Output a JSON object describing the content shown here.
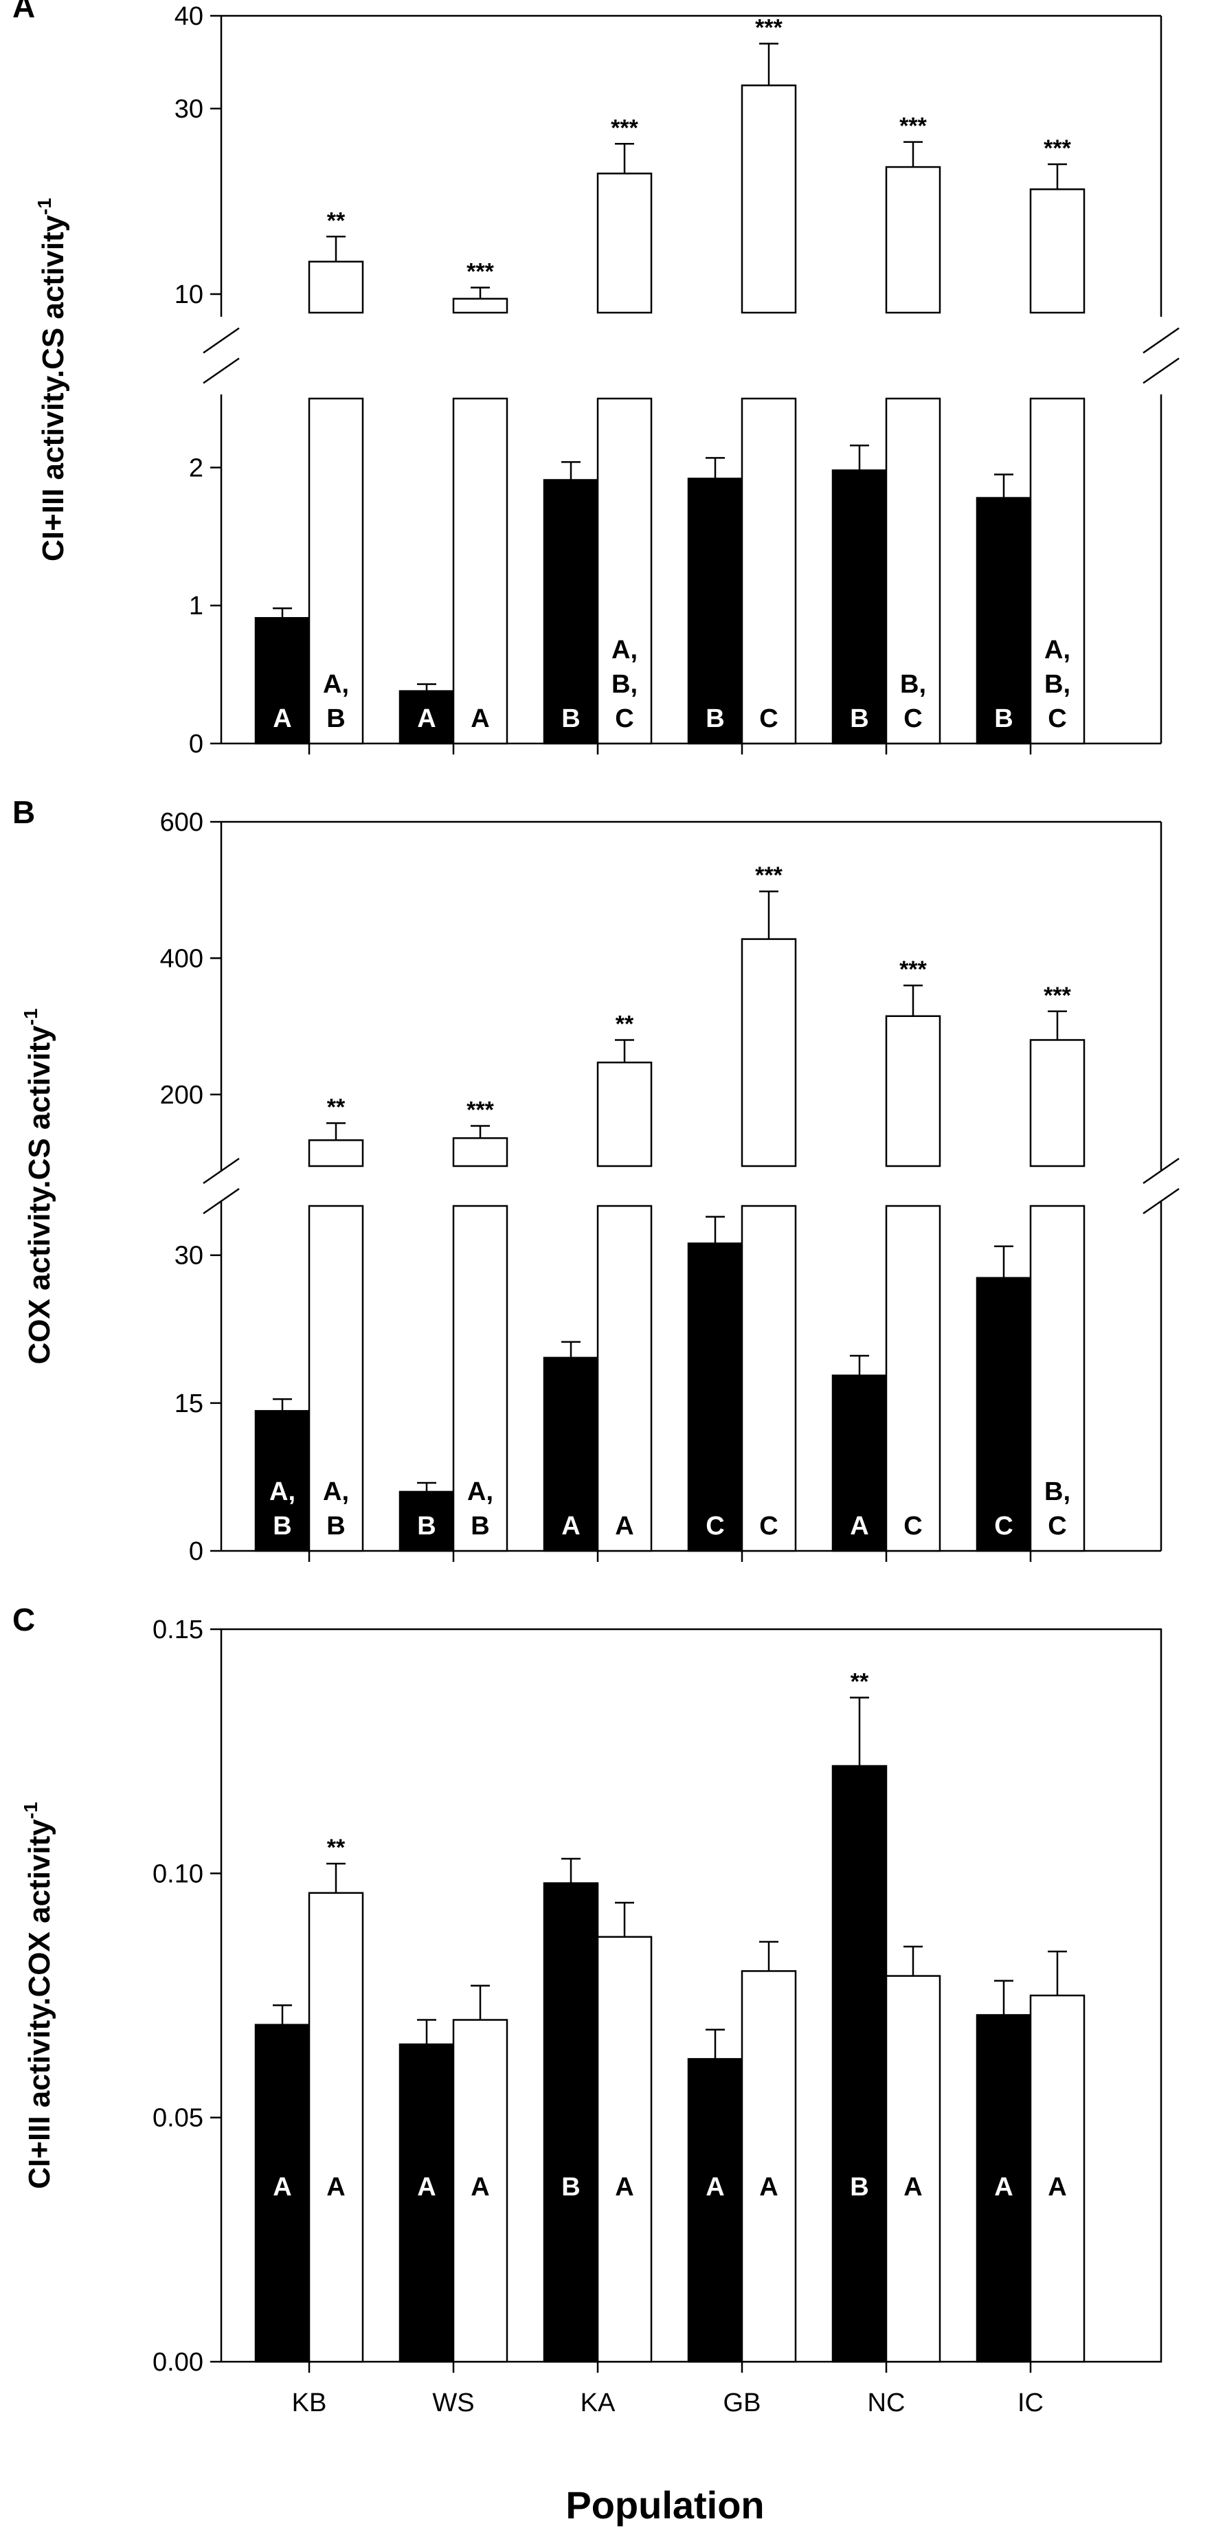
{
  "xlabel": "Population",
  "colors": {
    "filled_bar": "#000000",
    "open_bar": "#ffffff",
    "axis": "#000000"
  },
  "chart_data": [
    {
      "panel": "A",
      "type": "bar",
      "ylabel": "CI+III activity.CS activity",
      "ylabel_sup": "-1",
      "categories": [
        "KB",
        "WS",
        "KA",
        "GB",
        "NC",
        "IC"
      ],
      "broken_axis": {
        "lower_range": [
          0,
          2.5
        ],
        "upper_range": [
          8,
          40
        ],
        "lower_ticks": [
          0,
          1,
          2
        ],
        "upper_ticks": [
          10,
          30,
          40
        ]
      },
      "series": [
        {
          "name": "filled",
          "values": [
            0.91,
            0.38,
            1.91,
            1.92,
            1.98,
            1.78
          ],
          "errors": [
            0.07,
            0.05,
            0.13,
            0.15,
            0.18,
            0.17
          ],
          "group_labels": [
            [
              "A"
            ],
            [
              "A"
            ],
            [
              "B"
            ],
            [
              "B"
            ],
            [
              "B"
            ],
            [
              "B"
            ]
          ],
          "significance": [
            "",
            "",
            "",
            "",
            "",
            ""
          ]
        },
        {
          "name": "open",
          "values": [
            13.5,
            9.5,
            23.0,
            32.5,
            23.7,
            21.3
          ],
          "errors": [
            2.7,
            1.2,
            3.2,
            4.5,
            2.7,
            2.7
          ],
          "group_labels": [
            [
              "A,",
              "B"
            ],
            [
              "A"
            ],
            [
              "A,",
              "B,",
              "C"
            ],
            [
              "C"
            ],
            [
              "B,",
              "C"
            ],
            [
              "A,",
              "B,",
              "C"
            ]
          ],
          "significance": [
            "**",
            "***",
            "***",
            "***",
            "***",
            "***"
          ]
        }
      ]
    },
    {
      "panel": "B",
      "type": "bar",
      "ylabel": "COX activity.CS activity",
      "ylabel_sup": "-1",
      "categories": [
        "KB",
        "WS",
        "KA",
        "GB",
        "NC",
        "IC"
      ],
      "broken_axis": {
        "lower_range": [
          0,
          35
        ],
        "upper_range": [
          95,
          600
        ],
        "lower_ticks": [
          0,
          15,
          30
        ],
        "upper_ticks": [
          200,
          400,
          600
        ]
      },
      "series": [
        {
          "name": "filled",
          "values": [
            14.2,
            6.0,
            19.6,
            31.2,
            17.8,
            27.7
          ],
          "errors": [
            1.2,
            0.9,
            1.6,
            2.7,
            2.0,
            3.2
          ],
          "group_labels": [
            [
              "A,",
              "B"
            ],
            [
              "B"
            ],
            [
              "A"
            ],
            [
              "C"
            ],
            [
              "A"
            ],
            [
              "C"
            ]
          ],
          "significance": [
            "",
            "",
            "",
            "",
            "",
            ""
          ]
        },
        {
          "name": "open",
          "values": [
            133,
            136,
            247,
            428,
            315,
            280
          ],
          "errors": [
            25,
            18,
            33,
            70,
            45,
            42
          ],
          "group_labels": [
            [
              "A,",
              "B"
            ],
            [
              "A,",
              "B"
            ],
            [
              "A"
            ],
            [
              "C"
            ],
            [
              "C"
            ],
            [
              "B,",
              "C"
            ]
          ],
          "significance": [
            "**",
            "***",
            "**",
            "***",
            "***",
            "***"
          ]
        }
      ]
    },
    {
      "panel": "C",
      "type": "bar",
      "ylabel": "CI+III activity.COX activity",
      "ylabel_sup": "-1",
      "categories": [
        "KB",
        "WS",
        "KA",
        "GB",
        "NC",
        "IC"
      ],
      "ylim": [
        0,
        0.15
      ],
      "yticks": [
        "0.00",
        "0.05",
        "0.10",
        "0.15"
      ],
      "series": [
        {
          "name": "filled",
          "values": [
            0.069,
            0.065,
            0.098,
            0.062,
            0.122,
            0.071
          ],
          "errors": [
            0.004,
            0.005,
            0.005,
            0.006,
            0.014,
            0.007
          ],
          "group_labels": [
            [
              "A"
            ],
            [
              "A"
            ],
            [
              "B"
            ],
            [
              "A"
            ],
            [
              "B"
            ],
            [
              "A"
            ]
          ],
          "significance": [
            "",
            "",
            "",
            "",
            "**",
            ""
          ]
        },
        {
          "name": "open",
          "values": [
            0.096,
            0.07,
            0.087,
            0.08,
            0.079,
            0.075
          ],
          "errors": [
            0.006,
            0.007,
            0.007,
            0.006,
            0.006,
            0.009
          ],
          "group_labels": [
            [
              "A"
            ],
            [
              "A"
            ],
            [
              "A"
            ],
            [
              "A"
            ],
            [
              "A"
            ],
            [
              "A"
            ]
          ],
          "significance": [
            "**",
            "",
            "",
            "",
            "",
            ""
          ]
        }
      ]
    }
  ]
}
